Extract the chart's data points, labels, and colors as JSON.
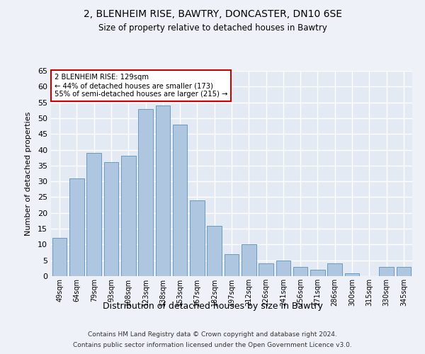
{
  "title1": "2, BLENHEIM RISE, BAWTRY, DONCASTER, DN10 6SE",
  "title2": "Size of property relative to detached houses in Bawtry",
  "xlabel": "Distribution of detached houses by size in Bawtry",
  "ylabel": "Number of detached properties",
  "footer1": "Contains HM Land Registry data © Crown copyright and database right 2024.",
  "footer2": "Contains public sector information licensed under the Open Government Licence v3.0.",
  "annotation_line1": "2 BLENHEIM RISE: 129sqm",
  "annotation_line2": "← 44% of detached houses are smaller (173)",
  "annotation_line3": "55% of semi-detached houses are larger (215) →",
  "bar_color": "#aec6e0",
  "bar_edge_color": "#6a9bbf",
  "categories": [
    "49sqm",
    "64sqm",
    "79sqm",
    "93sqm",
    "108sqm",
    "123sqm",
    "138sqm",
    "153sqm",
    "167sqm",
    "182sqm",
    "197sqm",
    "212sqm",
    "226sqm",
    "241sqm",
    "256sqm",
    "271sqm",
    "286sqm",
    "300sqm",
    "315sqm",
    "330sqm",
    "345sqm"
  ],
  "values": [
    12,
    31,
    39,
    36,
    38,
    53,
    54,
    48,
    24,
    16,
    7,
    10,
    4,
    5,
    3,
    2,
    4,
    1,
    0,
    3,
    3
  ],
  "ylim": [
    0,
    65
  ],
  "yticks": [
    0,
    5,
    10,
    15,
    20,
    25,
    30,
    35,
    40,
    45,
    50,
    55,
    60,
    65
  ],
  "bg_color": "#eef2f8",
  "plot_bg_color": "#e4eaf4",
  "grid_color": "#ffffff",
  "annotation_box_color": "#ffffff",
  "annotation_box_edge": "#cc0000"
}
